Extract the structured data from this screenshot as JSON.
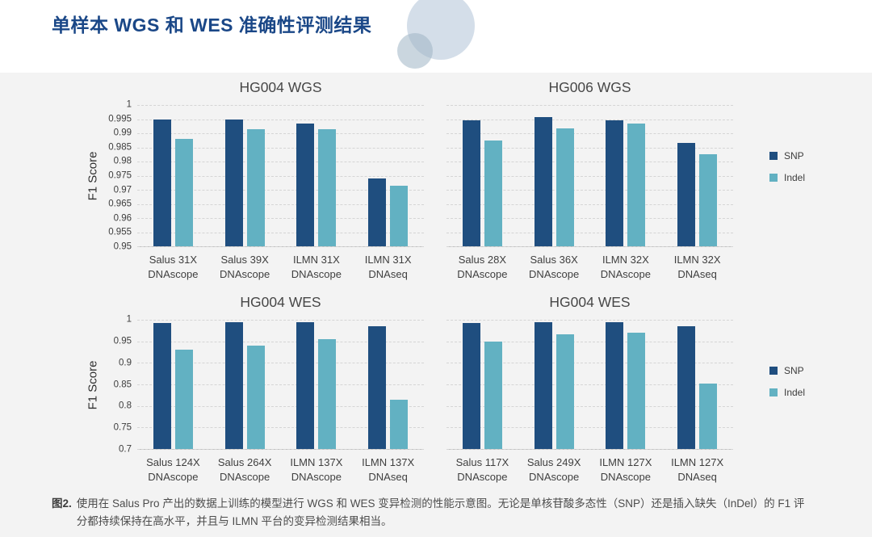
{
  "page_title": "单样本 WGS 和 WES 准确性评测结果",
  "legend": {
    "snp": "SNP",
    "indel": "Indel",
    "snp_color": "#1f4e7f",
    "indel_color": "#62b1c2"
  },
  "caption": {
    "label": "图2.",
    "text": "使用在 Salus Pro 产出的数据上训练的模型进行 WGS 和 WES 变异检测的性能示意图。无论是单核苷酸多态性（SNP）还是插入缺失（InDel）的 F1 评分都持续保持在高水平，并且与 ILMN 平台的变异检测结果相当。"
  },
  "chart_data": [
    {
      "type": "bar",
      "title": "HG004 WGS",
      "ylabel": "F1 Score",
      "ylim": [
        0.95,
        1
      ],
      "yticks": [
        1,
        0.995,
        0.99,
        0.985,
        0.98,
        0.975,
        0.97,
        0.965,
        0.96,
        0.955,
        0.95
      ],
      "grid": "dashed-horizontal",
      "legend_position": "right",
      "categories": [
        [
          "Salus 31X",
          "DNAscope"
        ],
        [
          "Salus 39X",
          "DNAscope"
        ],
        [
          "ILMN 31X",
          "DNAscope"
        ],
        [
          "ILMN 31X",
          "DNAseq"
        ]
      ],
      "series": [
        {
          "name": "SNP",
          "values": [
            0.9948,
            0.9948,
            0.9935,
            0.974
          ]
        },
        {
          "name": "Indel",
          "values": [
            0.988,
            0.9915,
            0.9915,
            0.9715
          ]
        }
      ]
    },
    {
      "type": "bar",
      "title": "HG006 WGS",
      "ylabel": "F1 Score",
      "ylim": [
        0.95,
        1
      ],
      "yticks": [
        1,
        0.995,
        0.99,
        0.985,
        0.98,
        0.975,
        0.97,
        0.965,
        0.96,
        0.955,
        0.95
      ],
      "grid": "dashed-horizontal",
      "legend_position": "right",
      "categories": [
        [
          "Salus 28X",
          "DNAscope"
        ],
        [
          "Salus 36X",
          "DNAscope"
        ],
        [
          "ILMN 32X",
          "DNAscope"
        ],
        [
          "ILMN 32X",
          "DNAseq"
        ]
      ],
      "series": [
        {
          "name": "SNP",
          "values": [
            0.9947,
            0.9957,
            0.9947,
            0.9865
          ]
        },
        {
          "name": "Indel",
          "values": [
            0.9875,
            0.9916,
            0.9934,
            0.9825
          ]
        }
      ]
    },
    {
      "type": "bar",
      "title": "HG004 WES",
      "ylabel": "F1 Score",
      "ylim": [
        0.7,
        1
      ],
      "yticks": [
        1,
        0.95,
        0.9,
        0.85,
        0.8,
        0.75,
        0.7
      ],
      "grid": "dashed-horizontal",
      "legend_position": "right",
      "categories": [
        [
          "Salus 124X",
          "DNAscope"
        ],
        [
          "Salus 264X",
          "DNAscope"
        ],
        [
          "ILMN 137X",
          "DNAscope"
        ],
        [
          "ILMN 137X",
          "DNAseq"
        ]
      ],
      "series": [
        {
          "name": "SNP",
          "values": [
            0.992,
            0.995,
            0.995,
            0.985
          ]
        },
        {
          "name": "Indel",
          "values": [
            0.93,
            0.941,
            0.955,
            0.815
          ]
        }
      ]
    },
    {
      "type": "bar",
      "title": "HG004 WES",
      "ylabel": "F1 Score",
      "ylim": [
        0.7,
        1
      ],
      "yticks": [
        1,
        0.95,
        0.9,
        0.85,
        0.8,
        0.75,
        0.7
      ],
      "grid": "dashed-horizontal",
      "legend_position": "right",
      "categories": [
        [
          "Salus 117X",
          "DNAscope"
        ],
        [
          "Salus 249X",
          "DNAscope"
        ],
        [
          "ILMN 127X",
          "DNAscope"
        ],
        [
          "ILMN 127X",
          "DNAseq"
        ]
      ],
      "series": [
        {
          "name": "SNP",
          "values": [
            0.993,
            0.994,
            0.994,
            0.985
          ]
        },
        {
          "name": "Indel",
          "values": [
            0.949,
            0.966,
            0.97,
            0.853
          ]
        }
      ]
    }
  ]
}
